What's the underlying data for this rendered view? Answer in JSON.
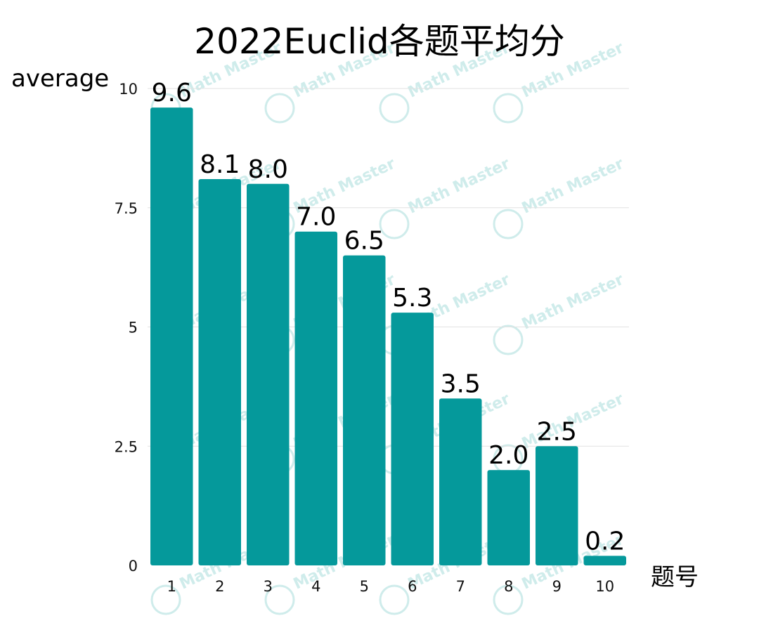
{
  "watermark": "Math Master",
  "chart_data": {
    "type": "bar",
    "title": "2022Euclid各题平均分",
    "ylabel": "average",
    "xlabel": "题号",
    "categories": [
      "1",
      "2",
      "3",
      "4",
      "5",
      "6",
      "7",
      "8",
      "9",
      "10"
    ],
    "values": [
      9.6,
      8.1,
      8.0,
      7.0,
      6.5,
      5.3,
      3.5,
      2.0,
      2.5,
      0.2
    ],
    "data_labels": [
      "9.6",
      "8.1",
      "8.0",
      "7.0",
      "6.5",
      "5.3",
      "3.5",
      "2.0",
      "2.5",
      "0.2"
    ],
    "yticks": [
      0,
      2.5,
      5,
      7.5,
      10
    ],
    "ytick_labels": [
      "0",
      "2.5",
      "5",
      "7.5",
      "10"
    ],
    "ylim": [
      0,
      10
    ],
    "grid": true,
    "legend": "none",
    "bar_color": "#05999b"
  }
}
